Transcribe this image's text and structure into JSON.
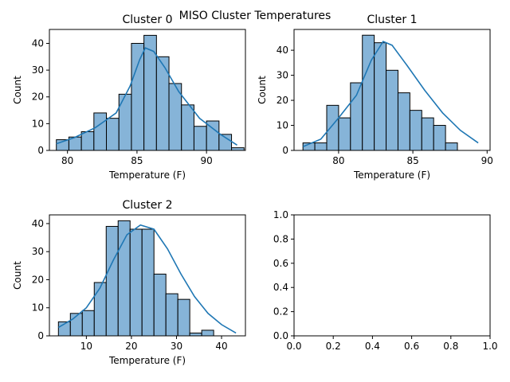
{
  "figure": {
    "suptitle": "MISO Cluster Temperatures"
  },
  "chart_data": [
    {
      "type": "bar",
      "title": "Cluster 0",
      "xlabel": "Temperature (F)",
      "ylabel": "Count",
      "xlim": [
        78.7,
        92.8
      ],
      "ylim": [
        0,
        45.2
      ],
      "xticks": [
        80,
        85,
        90
      ],
      "yticks": [
        0,
        10,
        20,
        30,
        40
      ],
      "bin_start": 79.2,
      "bin_width": 0.9,
      "values": [
        4,
        5,
        7,
        14,
        12,
        21,
        40,
        43,
        35,
        25,
        17,
        9,
        11,
        6,
        1
      ],
      "kde": [
        [
          79.2,
          2.5
        ],
        [
          80.5,
          4.8
        ],
        [
          82.0,
          8.5
        ],
        [
          83.5,
          14
        ],
        [
          84.5,
          24
        ],
        [
          85.2,
          34
        ],
        [
          85.6,
          38.3
        ],
        [
          86.2,
          37
        ],
        [
          87.0,
          31
        ],
        [
          88.0,
          22
        ],
        [
          89.5,
          12
        ],
        [
          91.0,
          6
        ],
        [
          92.2,
          2
        ]
      ]
    },
    {
      "type": "bar",
      "title": "Cluster 1",
      "xlabel": "Temperature (F)",
      "ylabel": "Count",
      "xlim": [
        77.0,
        90.2
      ],
      "ylim": [
        0,
        48.3
      ],
      "xticks": [
        80,
        85,
        90
      ],
      "yticks": [
        0,
        10,
        20,
        30,
        40
      ],
      "bin_start": 77.6,
      "bin_width": 0.8,
      "values": [
        3,
        3,
        18,
        13,
        27,
        46,
        43,
        32,
        23,
        16,
        13,
        10,
        3
      ],
      "kde": [
        [
          77.6,
          1.5
        ],
        [
          78.8,
          4.5
        ],
        [
          80.0,
          13
        ],
        [
          81.2,
          22
        ],
        [
          82.2,
          36
        ],
        [
          83.0,
          43.5
        ],
        [
          83.6,
          42
        ],
        [
          84.6,
          34
        ],
        [
          85.8,
          24
        ],
        [
          87.0,
          15
        ],
        [
          88.2,
          8
        ],
        [
          89.4,
          3
        ]
      ]
    },
    {
      "type": "bar",
      "title": "Cluster 2",
      "xlabel": "Temperature (F)",
      "ylabel": "Count",
      "xlim": [
        1.8,
        45.3
      ],
      "ylim": [
        0,
        43.1
      ],
      "xticks": [
        10,
        20,
        30,
        40
      ],
      "yticks": [
        0,
        10,
        20,
        30,
        40
      ],
      "bin_start": 3.8,
      "bin_width": 2.65,
      "values": [
        5,
        8,
        9,
        19,
        39,
        41,
        38,
        38,
        22,
        15,
        13,
        1,
        2
      ],
      "kde": [
        [
          3.8,
          3
        ],
        [
          7,
          6
        ],
        [
          10,
          10
        ],
        [
          13,
          17
        ],
        [
          16,
          27
        ],
        [
          19,
          36
        ],
        [
          22,
          39.5
        ],
        [
          25,
          38
        ],
        [
          28,
          31
        ],
        [
          31,
          22
        ],
        [
          34,
          14
        ],
        [
          37,
          8
        ],
        [
          40,
          4
        ],
        [
          43.2,
          1
        ]
      ]
    },
    {
      "type": "table",
      "title": "",
      "xlabel": "",
      "ylabel": "",
      "xlim": [
        0,
        1
      ],
      "ylim": [
        0,
        1
      ],
      "xticks": [
        0.0,
        0.2,
        0.4,
        0.6,
        0.8,
        1.0
      ],
      "yticks": [
        0.0,
        0.2,
        0.4,
        0.6,
        0.8,
        1.0
      ],
      "values": []
    }
  ]
}
